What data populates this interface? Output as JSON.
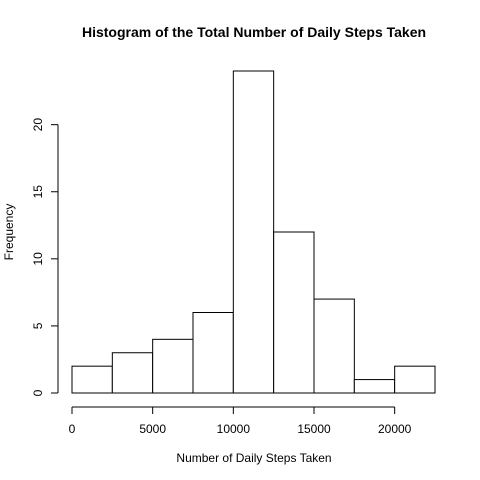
{
  "chart_data": {
    "type": "bar",
    "title": "Histogram of the Total Number of Daily Steps Taken",
    "xlabel": "Number of Daily Steps Taken",
    "ylabel": "Frequency",
    "bins": [
      {
        "start": 0,
        "end": 2500,
        "count": 2
      },
      {
        "start": 2500,
        "end": 5000,
        "count": 3
      },
      {
        "start": 5000,
        "end": 7500,
        "count": 4
      },
      {
        "start": 7500,
        "end": 10000,
        "count": 6
      },
      {
        "start": 10000,
        "end": 12500,
        "count": 24
      },
      {
        "start": 12500,
        "end": 15000,
        "count": 12
      },
      {
        "start": 15000,
        "end": 17500,
        "count": 7
      },
      {
        "start": 17500,
        "end": 20000,
        "count": 1
      },
      {
        "start": 20000,
        "end": 22500,
        "count": 2
      }
    ],
    "x_ticks": [
      0,
      5000,
      10000,
      15000,
      20000
    ],
    "y_ticks": [
      0,
      5,
      10,
      15,
      20
    ],
    "xlim": [
      0,
      22500
    ],
    "ylim": [
      0,
      24
    ],
    "grid": false
  }
}
